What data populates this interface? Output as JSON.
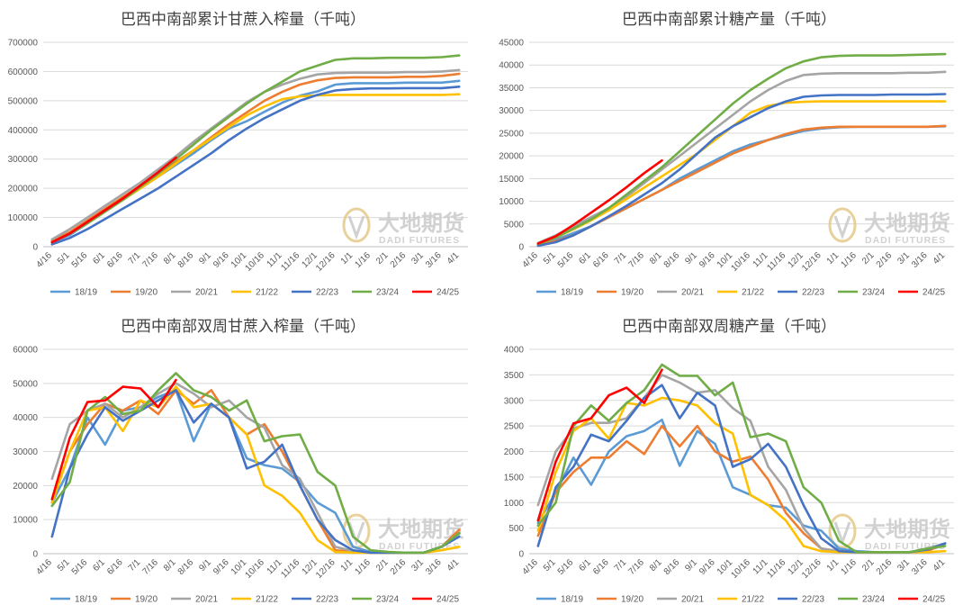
{
  "watermark": {
    "name_cn": "大地期货",
    "name_en": "DADI FUTURES",
    "color": "#c9c9c9"
  },
  "series_meta": [
    {
      "name": "18/19",
      "color": "#5b9bd5"
    },
    {
      "name": "19/20",
      "color": "#ed7d31"
    },
    {
      "name": "20/21",
      "color": "#a5a5a5"
    },
    {
      "name": "21/22",
      "color": "#ffc000"
    },
    {
      "name": "22/23",
      "color": "#4472c4"
    },
    {
      "name": "23/24",
      "color": "#70ad47"
    },
    {
      "name": "24/25",
      "color": "#ff0000"
    }
  ],
  "chart_data": [
    {
      "type": "line",
      "title": "巴西中南部累计甘蔗入榨量（千吨）",
      "xlabel": "",
      "ylabel": "",
      "ylim": [
        0,
        700000
      ],
      "yticks": [
        "0",
        "100000",
        "200000",
        "300000",
        "400000",
        "500000",
        "600000",
        "700000"
      ],
      "categories": [
        "4/16",
        "5/1",
        "5/16",
        "6/1",
        "6/16",
        "7/1",
        "7/16",
        "8/1",
        "8/16",
        "9/1",
        "9/16",
        "10/1",
        "10/16",
        "11/1",
        "11/16",
        "12/1",
        "12/16",
        "1/1",
        "1/16",
        "2/1",
        "2/16",
        "3/1",
        "3/16",
        "4/1"
      ],
      "grid": true,
      "legend": "bottom",
      "series": [
        {
          "name": "18/19",
          "values": [
            15000,
            40000,
            80000,
            120000,
            160000,
            200000,
            240000,
            280000,
            320000,
            365000,
            405000,
            430000,
            462000,
            493000,
            517000,
            532000,
            555000,
            560000,
            560000,
            560000,
            562000,
            562000,
            562000,
            568000
          ]
        },
        {
          "name": "19/20",
          "values": [
            20000,
            50000,
            90000,
            130000,
            170000,
            210000,
            250000,
            290000,
            330000,
            375000,
            420000,
            460000,
            500000,
            530000,
            555000,
            570000,
            578000,
            580000,
            580000,
            580000,
            582000,
            582000,
            585000,
            592000
          ]
        },
        {
          "name": "20/21",
          "values": [
            25000,
            60000,
            100000,
            140000,
            180000,
            220000,
            265000,
            310000,
            360000,
            405000,
            450000,
            495000,
            530000,
            555000,
            575000,
            590000,
            595000,
            596000,
            596000,
            596000,
            598000,
            598000,
            600000,
            605000
          ]
        },
        {
          "name": "21/22",
          "values": [
            15000,
            45000,
            80000,
            120000,
            160000,
            200000,
            240000,
            285000,
            330000,
            370000,
            410000,
            450000,
            480000,
            505000,
            515000,
            518000,
            520000,
            520000,
            520000,
            520000,
            520000,
            520000,
            520000,
            522000
          ]
        },
        {
          "name": "22/23",
          "values": [
            8000,
            30000,
            60000,
            95000,
            130000,
            165000,
            200000,
            240000,
            280000,
            320000,
            365000,
            405000,
            440000,
            470000,
            500000,
            520000,
            535000,
            540000,
            542000,
            542000,
            543000,
            543000,
            543000,
            548000
          ]
        },
        {
          "name": "23/24",
          "values": [
            15000,
            45000,
            80000,
            120000,
            160000,
            205000,
            250000,
            300000,
            350000,
            400000,
            445000,
            490000,
            530000,
            565000,
            600000,
            620000,
            640000,
            645000,
            645000,
            647000,
            647000,
            647000,
            649000,
            655000
          ]
        },
        {
          "name": "24/25",
          "values": [
            15000,
            45000,
            85000,
            125000,
            165000,
            210000,
            255000,
            305000,
            null,
            null,
            null,
            null,
            null,
            null,
            null,
            null,
            null,
            null,
            null,
            null,
            null,
            null,
            null,
            null
          ]
        }
      ]
    },
    {
      "type": "line",
      "title": "巴西中南部累计糖产量（千吨）",
      "xlabel": "",
      "ylabel": "",
      "ylim": [
        0,
        45000
      ],
      "yticks": [
        "0",
        "5000",
        "10000",
        "15000",
        "20000",
        "25000",
        "30000",
        "35000",
        "40000",
        "45000"
      ],
      "categories": [
        "4/16",
        "5/1",
        "5/16",
        "6/1",
        "6/16",
        "7/1",
        "7/16",
        "8/1",
        "8/16",
        "9/1",
        "9/16",
        "10/1",
        "10/16",
        "11/1",
        "11/16",
        "12/1",
        "12/16",
        "1/1",
        "1/16",
        "2/1",
        "2/16",
        "3/1",
        "3/16",
        "4/1"
      ],
      "grid": true,
      "legend": "bottom",
      "series": [
        {
          "name": "18/19",
          "values": [
            500,
            1500,
            3000,
            4500,
            6500,
            8500,
            10500,
            12500,
            15000,
            17000,
            19000,
            21000,
            22500,
            23500,
            24500,
            25500,
            26000,
            26300,
            26400,
            26400,
            26400,
            26400,
            26400,
            26500
          ]
        },
        {
          "name": "19/20",
          "values": [
            500,
            1200,
            2500,
            4500,
            6500,
            8500,
            10500,
            12500,
            14500,
            16500,
            18500,
            20500,
            22000,
            23500,
            24800,
            25800,
            26200,
            26400,
            26400,
            26400,
            26400,
            26400,
            26400,
            26600
          ]
        },
        {
          "name": "20/21",
          "values": [
            800,
            2500,
            4500,
            6500,
            8500,
            11000,
            14000,
            17000,
            20000,
            23000,
            26000,
            29000,
            32000,
            34500,
            36500,
            37800,
            38100,
            38200,
            38200,
            38200,
            38200,
            38300,
            38300,
            38500
          ]
        },
        {
          "name": "21/22",
          "values": [
            600,
            2000,
            3800,
            5800,
            8000,
            10500,
            13000,
            15500,
            18000,
            20500,
            23500,
            26500,
            29500,
            31000,
            31700,
            31900,
            32000,
            32000,
            32000,
            32000,
            32000,
            32000,
            32000,
            32000
          ]
        },
        {
          "name": "22/23",
          "values": [
            200,
            1000,
            2500,
            4500,
            6700,
            9000,
            11500,
            14000,
            17000,
            20500,
            24000,
            26500,
            28500,
            30500,
            32000,
            33000,
            33300,
            33400,
            33400,
            33400,
            33500,
            33500,
            33500,
            33600
          ]
        },
        {
          "name": "23/24",
          "values": [
            600,
            2000,
            4000,
            6000,
            8500,
            11500,
            14500,
            17500,
            21000,
            24500,
            28000,
            31500,
            34500,
            37000,
            39300,
            40800,
            41700,
            42000,
            42100,
            42100,
            42100,
            42200,
            42300,
            42400
          ]
        },
        {
          "name": "24/25",
          "values": [
            700,
            2300,
            4800,
            7500,
            10200,
            13100,
            16200,
            19000,
            null,
            null,
            null,
            null,
            null,
            null,
            null,
            null,
            null,
            null,
            null,
            null,
            null,
            null,
            null,
            null
          ]
        }
      ]
    },
    {
      "type": "line",
      "title": "巴西中南部双周甘蔗入榨量（千吨）",
      "xlabel": "",
      "ylabel": "",
      "ylim": [
        0,
        60000
      ],
      "yticks": [
        "0",
        "10000",
        "20000",
        "30000",
        "40000",
        "50000",
        "60000"
      ],
      "categories": [
        "4/16",
        "5/1",
        "5/16",
        "6/1",
        "6/16",
        "7/1",
        "7/16",
        "8/1",
        "8/16",
        "9/1",
        "9/16",
        "10/1",
        "10/16",
        "11/1",
        "11/16",
        "12/1",
        "12/16",
        "1/1",
        "1/16",
        "2/1",
        "2/16",
        "3/1",
        "3/16",
        "4/1"
      ],
      "grid": true,
      "legend": "bottom",
      "series": [
        {
          "name": "18/19",
          "values": [
            15000,
            25000,
            40000,
            32000,
            42000,
            43000,
            46000,
            48000,
            33000,
            44000,
            40000,
            28000,
            26000,
            25000,
            21000,
            15000,
            12000,
            2000,
            500,
            300,
            300,
            300,
            2000,
            6000
          ]
        },
        {
          "name": "19/20",
          "values": [
            15000,
            30000,
            38000,
            44000,
            42000,
            45000,
            41000,
            48000,
            44000,
            48000,
            40000,
            35000,
            38000,
            30000,
            20000,
            10000,
            1000,
            500,
            300,
            300,
            300,
            300,
            2000,
            7000
          ]
        },
        {
          "name": "20/21",
          "values": [
            22000,
            38000,
            42000,
            44000,
            40000,
            43000,
            47000,
            50000,
            47000,
            43000,
            45000,
            40000,
            37000,
            26000,
            22000,
            12000,
            2000,
            800,
            300,
            300,
            300,
            300,
            2000,
            6000
          ]
        },
        {
          "name": "21/22",
          "values": [
            15000,
            30000,
            42000,
            43000,
            36000,
            45000,
            43000,
            49000,
            43000,
            44000,
            40000,
            35000,
            20000,
            17000,
            12000,
            4000,
            500,
            300,
            300,
            300,
            300,
            300,
            1000,
            2000
          ]
        },
        {
          "name": "22/23",
          "values": [
            5000,
            25000,
            35000,
            43000,
            39000,
            42000,
            45000,
            48000,
            38500,
            44000,
            40000,
            25000,
            27000,
            32000,
            20000,
            10000,
            4000,
            1000,
            300,
            300,
            300,
            300,
            2000,
            5000
          ]
        },
        {
          "name": "23/24",
          "values": [
            14000,
            21000,
            42000,
            46000,
            41000,
            42000,
            48000,
            53000,
            48000,
            46000,
            42000,
            45000,
            33000,
            34500,
            35000,
            24000,
            20000,
            5000,
            1000,
            500,
            300,
            300,
            2000,
            6000
          ]
        },
        {
          "name": "24/25",
          "values": [
            16000,
            34000,
            44500,
            45000,
            49000,
            48500,
            43000,
            51000,
            null,
            null,
            null,
            null,
            null,
            null,
            null,
            null,
            null,
            null,
            null,
            null,
            null,
            null,
            null,
            null
          ]
        }
      ]
    },
    {
      "type": "line",
      "title": "巴西中南部双周糖产量（千吨）",
      "xlabel": "",
      "ylabel": "",
      "ylim": [
        0,
        4000
      ],
      "yticks": [
        "0",
        "500",
        "1000",
        "1500",
        "2000",
        "2500",
        "3000",
        "3500",
        "4000"
      ],
      "categories": [
        "4/16",
        "5/1",
        "5/16",
        "6/1",
        "6/16",
        "7/1",
        "7/16",
        "8/1",
        "8/16",
        "9/1",
        "9/16",
        "10/1",
        "10/16",
        "11/1",
        "11/16",
        "12/1",
        "12/16",
        "1/1",
        "1/16",
        "2/1",
        "2/16",
        "3/1",
        "3/16",
        "4/1"
      ],
      "grid": true,
      "legend": "bottom",
      "series": [
        {
          "name": "18/19",
          "values": [
            600,
            1200,
            1880,
            1350,
            2000,
            2300,
            2400,
            2620,
            1720,
            2400,
            2150,
            1300,
            1150,
            950,
            900,
            550,
            450,
            100,
            50,
            30,
            30,
            30,
            100,
            200
          ]
        },
        {
          "name": "19/20",
          "values": [
            350,
            1200,
            1600,
            1880,
            1880,
            2200,
            1950,
            2500,
            2100,
            2500,
            2000,
            1800,
            1900,
            1450,
            800,
            400,
            100,
            50,
            30,
            30,
            30,
            30,
            50,
            200
          ]
        },
        {
          "name": "20/21",
          "values": [
            950,
            2000,
            2450,
            2560,
            2560,
            2650,
            3050,
            3500,
            3350,
            3150,
            3200,
            2850,
            2600,
            1700,
            1250,
            500,
            100,
            50,
            30,
            30,
            30,
            30,
            100,
            200
          ]
        },
        {
          "name": "21/22",
          "values": [
            450,
            1600,
            2400,
            2650,
            2250,
            2950,
            2900,
            3050,
            3000,
            2900,
            2550,
            2350,
            1150,
            950,
            650,
            150,
            50,
            30,
            30,
            30,
            30,
            30,
            30,
            50
          ]
        },
        {
          "name": "22/23",
          "values": [
            150,
            1300,
            1700,
            2330,
            2200,
            2600,
            3050,
            3300,
            2650,
            3150,
            2900,
            1700,
            1850,
            2150,
            1700,
            950,
            300,
            50,
            30,
            30,
            30,
            30,
            80,
            200
          ]
        },
        {
          "name": "23/24",
          "values": [
            550,
            1000,
            2500,
            2900,
            2600,
            2950,
            3200,
            3700,
            3480,
            3480,
            3100,
            3350,
            2280,
            2350,
            2200,
            1300,
            1000,
            250,
            30,
            30,
            30,
            30,
            100,
            150
          ]
        },
        {
          "name": "24/25",
          "values": [
            650,
            1800,
            2550,
            2650,
            3100,
            3250,
            2950,
            3600,
            null,
            null,
            null,
            null,
            null,
            null,
            null,
            null,
            null,
            null,
            null,
            null,
            null,
            null,
            null,
            null
          ]
        }
      ]
    }
  ]
}
